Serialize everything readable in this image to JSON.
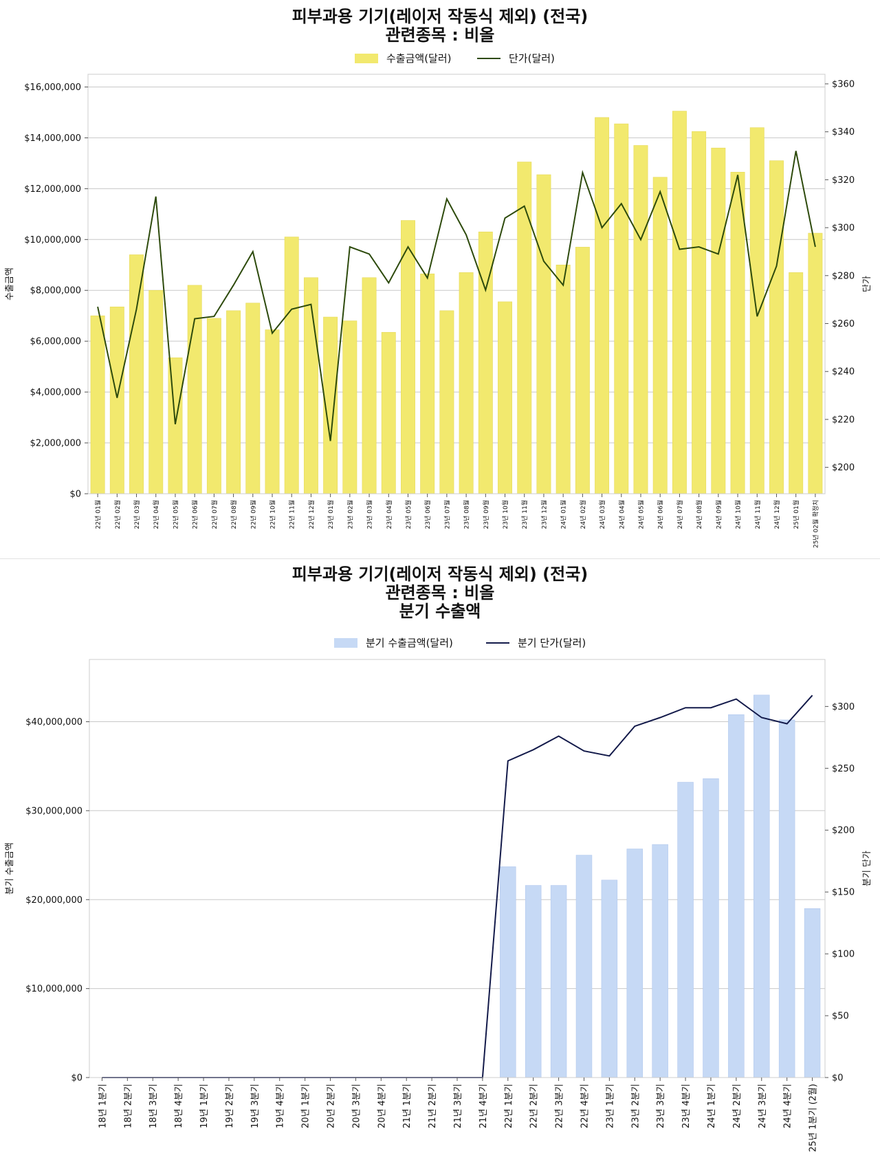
{
  "chart_data": [
    {
      "type": "bar",
      "title_lines": [
        "피부과용 기기(레이저 작동식 제외) (전국)",
        "관련종목 : 비올"
      ],
      "legend": [
        "수출금액(달러)",
        "단가(달러)"
      ],
      "ylabel": "수출금액",
      "y2label": "단가",
      "ylim": [
        0,
        16500000
      ],
      "y2lim": [
        189,
        364
      ],
      "yticks": [
        "$0",
        "$2,000,000",
        "$4,000,000",
        "$6,000,000",
        "$8,000,000",
        "$10,000,000",
        "$12,000,000",
        "$14,000,000",
        "$16,000,000"
      ],
      "y2ticks": [
        "$200",
        "$220",
        "$240",
        "$260",
        "$280",
        "$300",
        "$320",
        "$340",
        "$360"
      ],
      "ytick_values": [
        0,
        2000000,
        4000000,
        6000000,
        8000000,
        10000000,
        12000000,
        14000000,
        16000000
      ],
      "y2tick_values": [
        200,
        220,
        240,
        260,
        280,
        300,
        320,
        340,
        360
      ],
      "categories": [
        "22년 01월",
        "22년 02월",
        "22년 03월",
        "22년 04월",
        "22년 05월",
        "22년 06월",
        "22년 07월",
        "22년 08월",
        "22년 09월",
        "22년 10월",
        "22년 11월",
        "22년 12월",
        "23년 01월",
        "23년 02월",
        "23년 03월",
        "23년 04월",
        "23년 05월",
        "23년 06월",
        "23년 07월",
        "23년 08월",
        "23년 09월",
        "23년 10월",
        "23년 11월",
        "23년 12월",
        "24년 01월",
        "24년 02월",
        "24년 03월",
        "24년 04월",
        "24년 05월",
        "24년 06월",
        "24년 07월",
        "24년 08월",
        "24년 09월",
        "24년 10월",
        "24년 11월",
        "24년 12월",
        "25년 01월",
        "25년 02월 확정치"
      ],
      "series": [
        {
          "name": "수출금액(달러)",
          "axis": "left",
          "kind": "bar",
          "color": "#f2e96e",
          "values": [
            7000000,
            7350000,
            9400000,
            8000000,
            5350000,
            8200000,
            6900000,
            7200000,
            7500000,
            6450000,
            10100000,
            8500000,
            6950000,
            6800000,
            8500000,
            6350000,
            10750000,
            8650000,
            7200000,
            8700000,
            10300000,
            7550000,
            13050000,
            12550000,
            9000000,
            9700000,
            14800000,
            14550000,
            13700000,
            12450000,
            15050000,
            14250000,
            13600000,
            12650000,
            14400000,
            13100000,
            8700000,
            10250000
          ]
        },
        {
          "name": "단가(달러)",
          "axis": "right",
          "kind": "line",
          "color": "#2d4a0c",
          "values": [
            267,
            229,
            266,
            313,
            218,
            262,
            263,
            276,
            290,
            256,
            266,
            268,
            211,
            292,
            289,
            277,
            292,
            279,
            312,
            297,
            274,
            304,
            309,
            286,
            276,
            323,
            300,
            310,
            295,
            315,
            291,
            292,
            289,
            322,
            263,
            284,
            332,
            292
          ]
        }
      ]
    },
    {
      "type": "bar",
      "title_lines": [
        "피부과용 기기(레이저 작동식 제외) (전국)",
        "관련종목 : 비올",
        "분기 수출액"
      ],
      "legend": [
        "분기 수출금액(달러)",
        "분기 단가(달러)"
      ],
      "ylabel": "분기 수출금액",
      "y2label": "분기 단가",
      "ylim": [
        0,
        47000000
      ],
      "y2lim": [
        0,
        338
      ],
      "yticks": [
        "$0",
        "$10,000,000",
        "$20,000,000",
        "$30,000,000",
        "$40,000,000"
      ],
      "y2ticks": [
        "$0",
        "$50",
        "$100",
        "$150",
        "$200",
        "$250",
        "$300"
      ],
      "ytick_values": [
        0,
        10000000,
        20000000,
        30000000,
        40000000
      ],
      "y2tick_values": [
        0,
        50,
        100,
        150,
        200,
        250,
        300
      ],
      "categories": [
        "18년 1분기",
        "18년 2분기",
        "18년 3분기",
        "18년 4분기",
        "19년 1분기",
        "19년 2분기",
        "19년 3분기",
        "19년 4분기",
        "20년 1분기",
        "20년 2분기",
        "20년 3분기",
        "20년 4분기",
        "21년 1분기",
        "21년 2분기",
        "21년 3분기",
        "21년 4분기",
        "22년 1분기",
        "22년 2분기",
        "22년 3분기",
        "22년 4분기",
        "23년 1분기",
        "23년 2분기",
        "23년 3분기",
        "23년 4분기",
        "24년 1분기",
        "24년 2분기",
        "24년 3분기",
        "24년 4분기",
        "25년 1분기 (2월)"
      ],
      "series": [
        {
          "name": "분기 수출금액(달러)",
          "axis": "left",
          "kind": "bar",
          "color": "#c6d9f5",
          "values": [
            0,
            0,
            0,
            0,
            0,
            0,
            0,
            0,
            0,
            0,
            0,
            0,
            0,
            0,
            0,
            0,
            23700000,
            21600000,
            21600000,
            25000000,
            22200000,
            25700000,
            26200000,
            33200000,
            33600000,
            40800000,
            43000000,
            40200000,
            19000000
          ]
        },
        {
          "name": "분기 단가(달러)",
          "axis": "right",
          "kind": "line",
          "color": "#131a4a",
          "values": [
            0,
            0,
            0,
            0,
            0,
            0,
            0,
            0,
            0,
            0,
            0,
            0,
            0,
            0,
            0,
            0,
            256,
            265,
            276,
            264,
            260,
            284,
            291,
            299,
            299,
            306,
            291,
            286,
            309
          ]
        }
      ]
    }
  ]
}
